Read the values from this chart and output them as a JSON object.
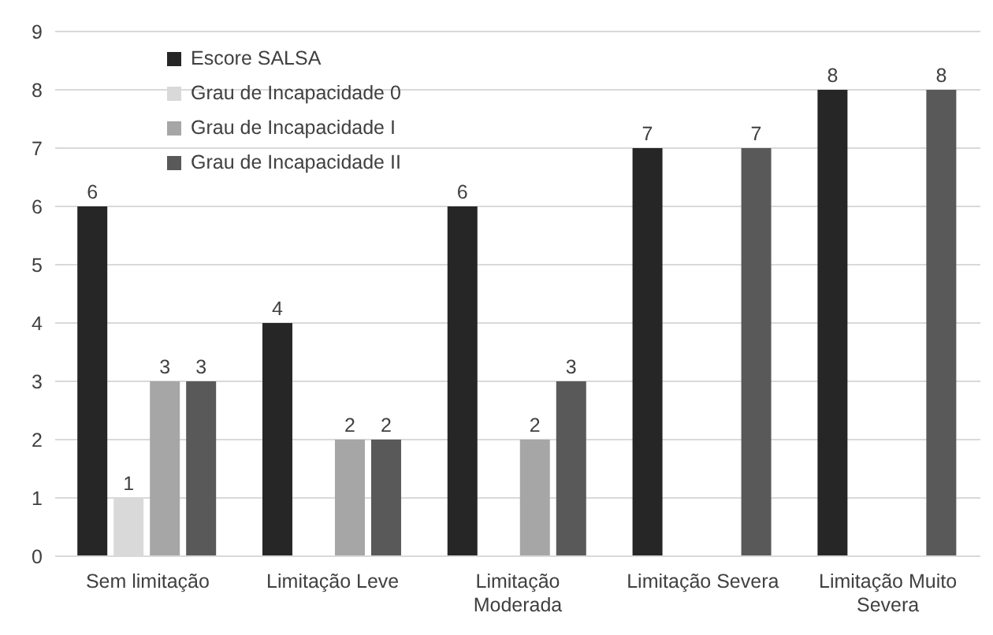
{
  "chart_data": {
    "type": "bar",
    "categories": [
      "Sem limitação",
      "Limitação Leve",
      "Limitação Moderada",
      "Limitação Severa",
      "Limitação Muito Severa"
    ],
    "series": [
      {
        "name": "Escore SALSA",
        "color": "#262626",
        "values": [
          6,
          4,
          6,
          7,
          8
        ]
      },
      {
        "name": "Grau de Incapacidade 0",
        "color": "#d9d9d9",
        "values": [
          1,
          null,
          null,
          null,
          null
        ]
      },
      {
        "name": "Grau de Incapacidade I",
        "color": "#a6a6a6",
        "values": [
          3,
          2,
          2,
          null,
          null
        ]
      },
      {
        "name": "Grau de Incapacidade II",
        "color": "#595959",
        "values": [
          3,
          2,
          3,
          7,
          8
        ]
      }
    ],
    "ylim": [
      0,
      9
    ],
    "yticks": [
      0,
      1,
      2,
      3,
      4,
      5,
      6,
      7,
      8,
      9
    ],
    "grid": "y",
    "legend": "top left",
    "data_labels": true
  }
}
